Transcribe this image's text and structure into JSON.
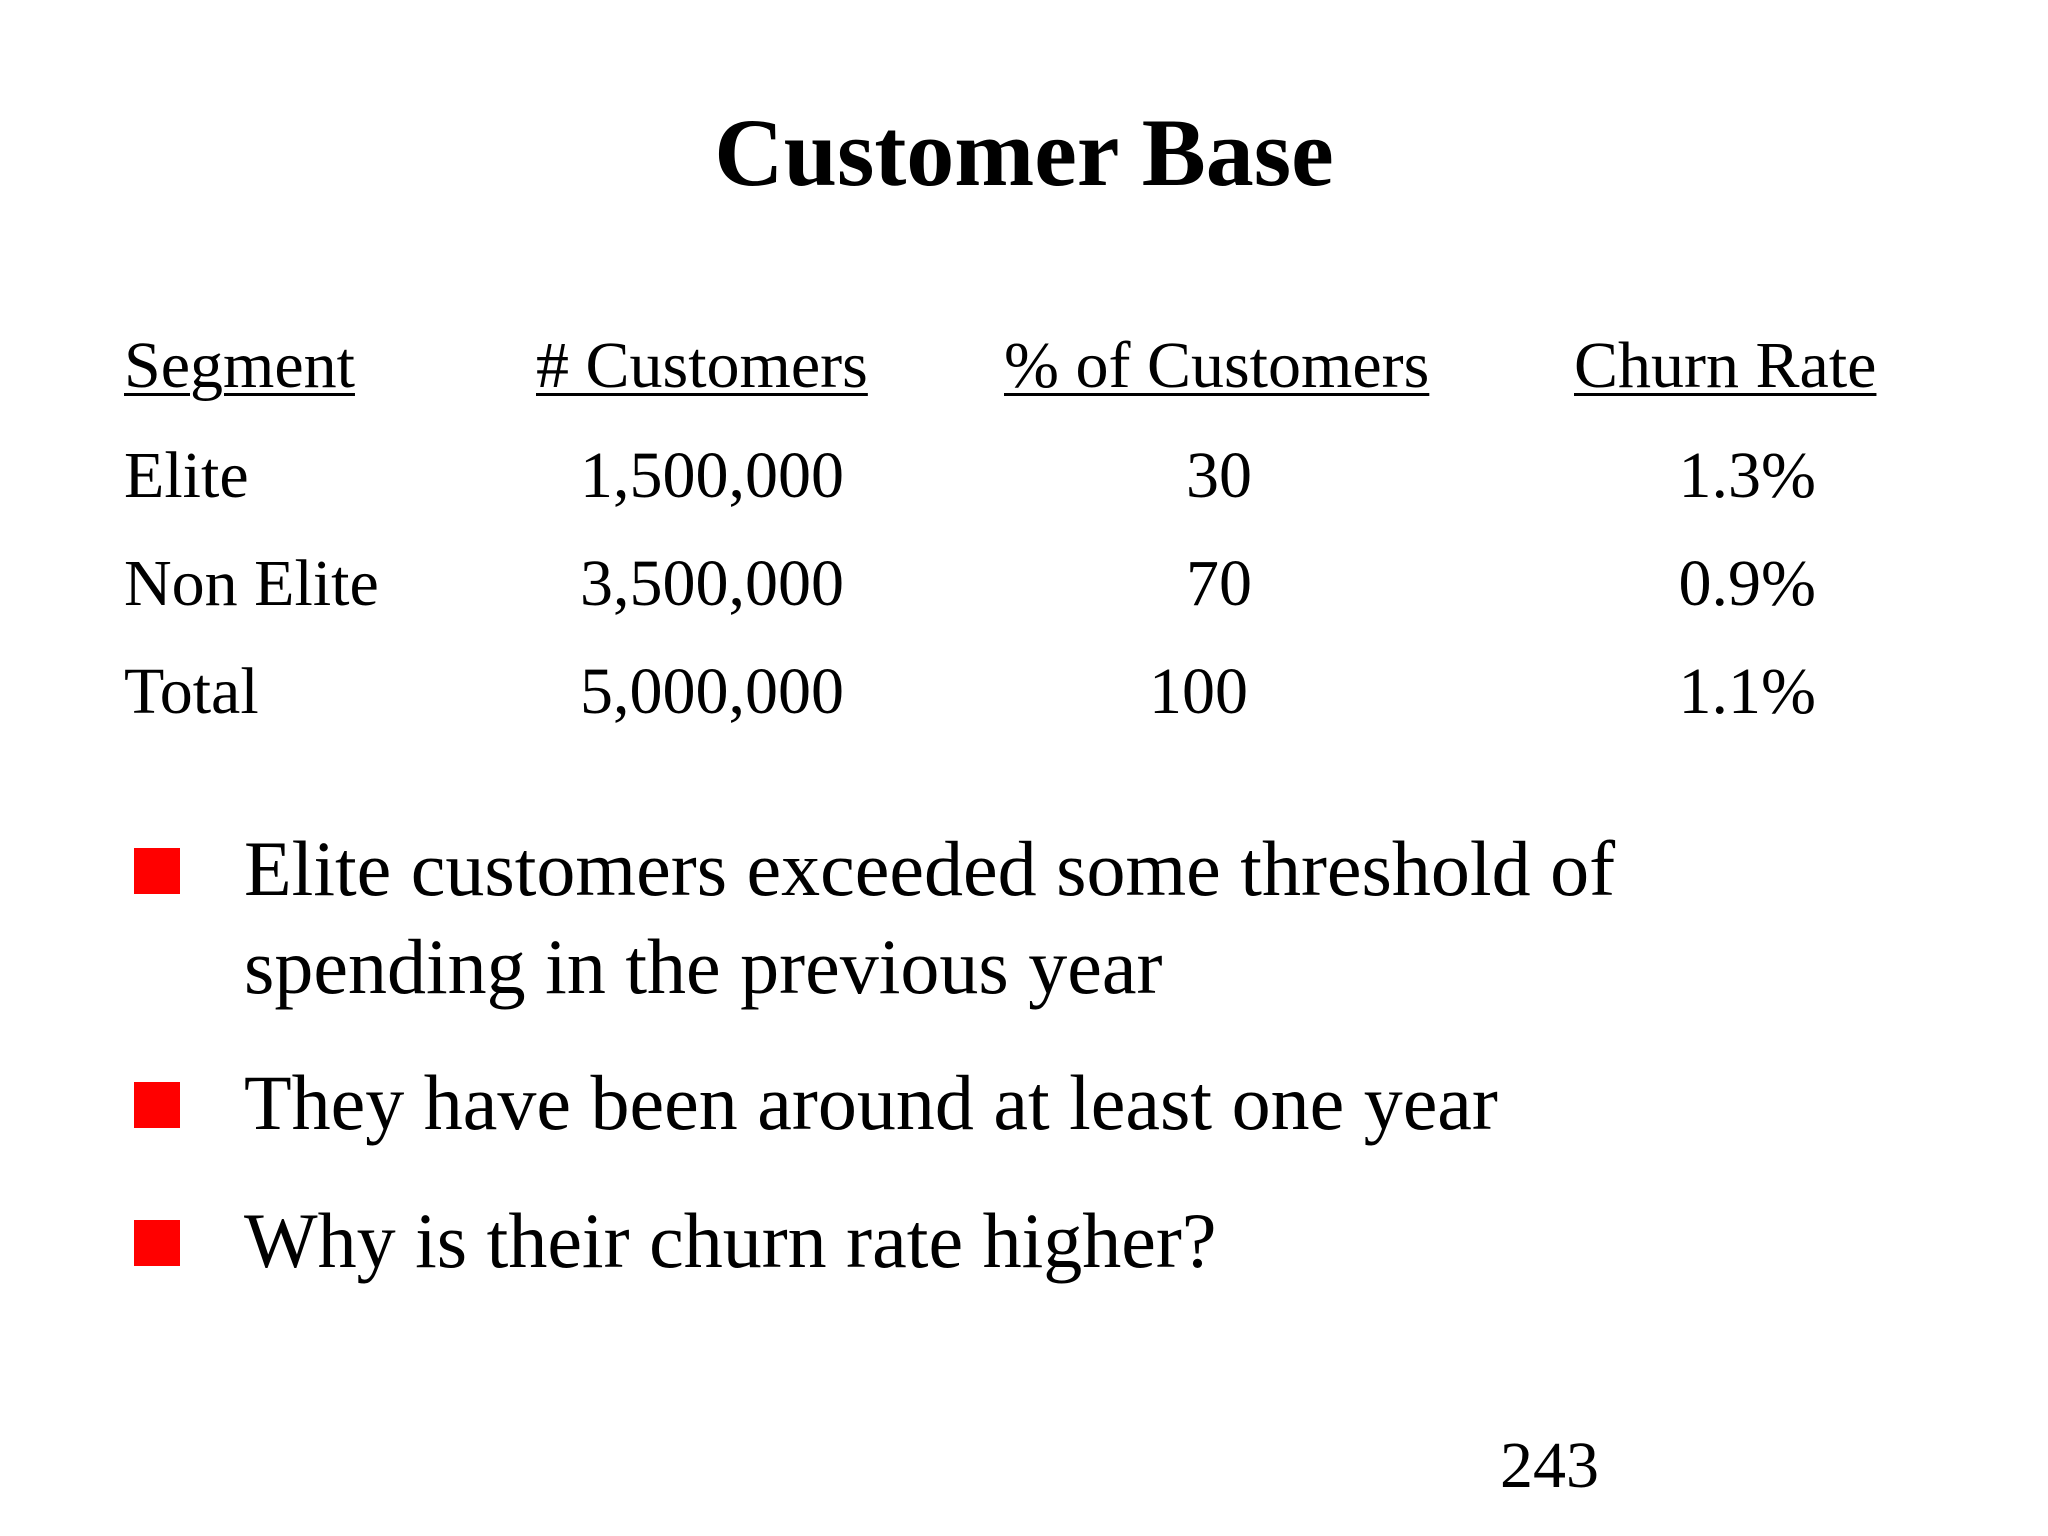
{
  "slide": {
    "title": "Customer Base",
    "table": {
      "headers": [
        "Segment",
        "# Customers",
        "% of Customers",
        "Churn Rate"
      ],
      "rows": [
        [
          "Elite",
          "1,500,000",
          "30",
          "1.3%"
        ],
        [
          "Non Elite",
          "3,500,000",
          "70",
          "0.9%"
        ],
        [
          "Total",
          "5,000,000",
          "100",
          "1.1%"
        ]
      ]
    },
    "bullets": [
      "Elite customers exceeded some threshold of spending in the previous year",
      "They have been around at least one year",
      "Why is their churn rate higher?"
    ],
    "page_number": "243",
    "colors": {
      "bullet": "#ff0000",
      "text": "#000000",
      "background": "#ffffff"
    }
  }
}
